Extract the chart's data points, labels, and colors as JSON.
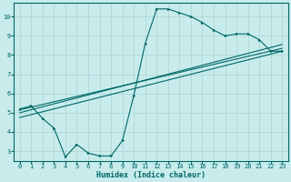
{
  "xlabel": "Humidex (Indice chaleur)",
  "bg_color": "#c8ecec",
  "grid_color": "#b0d8d8",
  "line_color": "#006666",
  "xlim": [
    -0.5,
    23.5
  ],
  "ylim": [
    2.5,
    10.7
  ],
  "xticks": [
    0,
    1,
    2,
    3,
    4,
    5,
    6,
    7,
    8,
    9,
    10,
    11,
    12,
    13,
    14,
    15,
    16,
    17,
    18,
    19,
    20,
    21,
    22,
    23
  ],
  "yticks": [
    3,
    4,
    5,
    6,
    7,
    8,
    9,
    10
  ],
  "line1_x": [
    0,
    1,
    2,
    3,
    4,
    5,
    6,
    7,
    8,
    9,
    10,
    11,
    12,
    13,
    14,
    15,
    16,
    17,
    18,
    19,
    20,
    21,
    22,
    23
  ],
  "line1_y": [
    5.2,
    5.35,
    4.7,
    4.2,
    2.7,
    3.35,
    2.9,
    2.75,
    2.75,
    3.55,
    5.9,
    8.6,
    10.4,
    10.4,
    10.2,
    10.0,
    9.7,
    9.3,
    9.0,
    9.1,
    9.1,
    8.8,
    8.2,
    8.2
  ],
  "line2_x": [
    0,
    23
  ],
  "line2_y": [
    5.15,
    8.35
  ],
  "line3_x": [
    0,
    23
  ],
  "line3_y": [
    5.0,
    8.55
  ],
  "line4_x": [
    0,
    23
  ],
  "line4_y": [
    4.75,
    8.2
  ],
  "tick_fontsize": 5.0,
  "xlabel_fontsize": 6.0,
  "marker_size": 2.0
}
